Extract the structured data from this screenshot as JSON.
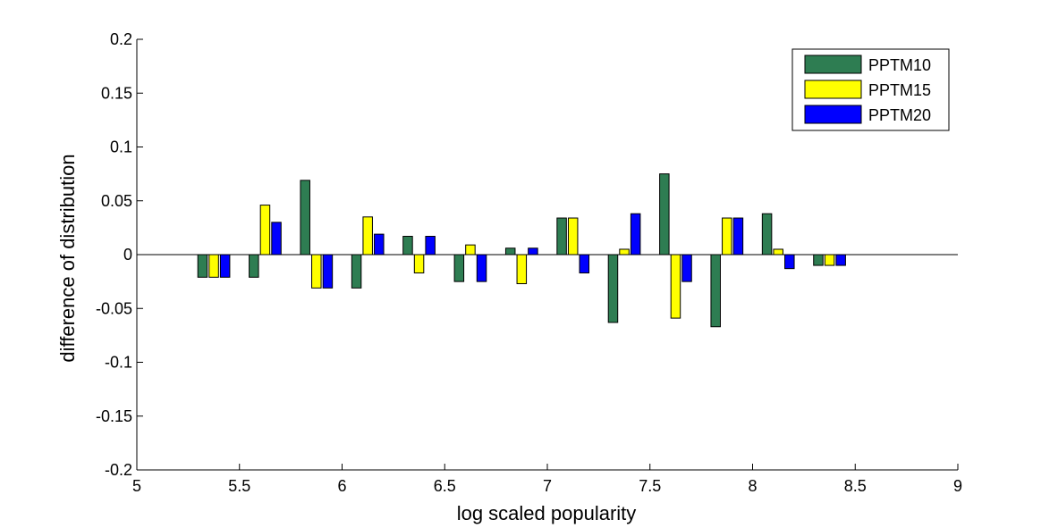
{
  "chart_data": {
    "type": "bar",
    "xlabel": "log scaled popularity",
    "ylabel": "difference of distribution",
    "xlim": [
      5,
      9
    ],
    "ylim": [
      -0.2,
      0.2
    ],
    "x_ticks": [
      "5",
      "5.5",
      "6",
      "6.5",
      "7",
      "7.5",
      "8",
      "8.5",
      "9"
    ],
    "y_ticks": [
      "-0.2",
      "-0.15",
      "-0.1",
      "-0.05",
      "0",
      "0.05",
      "0.1",
      "0.15",
      "0.2"
    ],
    "legend_position": "top-right",
    "x": [
      5.375,
      5.625,
      5.875,
      6.125,
      6.375,
      6.625,
      6.875,
      7.125,
      7.375,
      7.625,
      7.875,
      8.125,
      8.375
    ],
    "series": [
      {
        "name": "PPTM10",
        "color": "#2e7d52",
        "values": [
          -0.021,
          -0.021,
          0.069,
          -0.031,
          0.017,
          -0.025,
          0.006,
          0.034,
          -0.063,
          0.075,
          -0.067,
          0.038,
          -0.01
        ]
      },
      {
        "name": "PPTM15",
        "color": "#ffff00",
        "values": [
          -0.021,
          0.046,
          -0.031,
          0.035,
          -0.017,
          0.009,
          -0.027,
          0.034,
          0.005,
          -0.059,
          0.034,
          0.005,
          -0.01
        ]
      },
      {
        "name": "PPTM20",
        "color": "#0000ff",
        "values": [
          -0.021,
          0.03,
          -0.031,
          0.019,
          0.017,
          -0.025,
          0.006,
          -0.017,
          0.038,
          -0.025,
          0.034,
          -0.013,
          -0.01
        ]
      }
    ]
  }
}
